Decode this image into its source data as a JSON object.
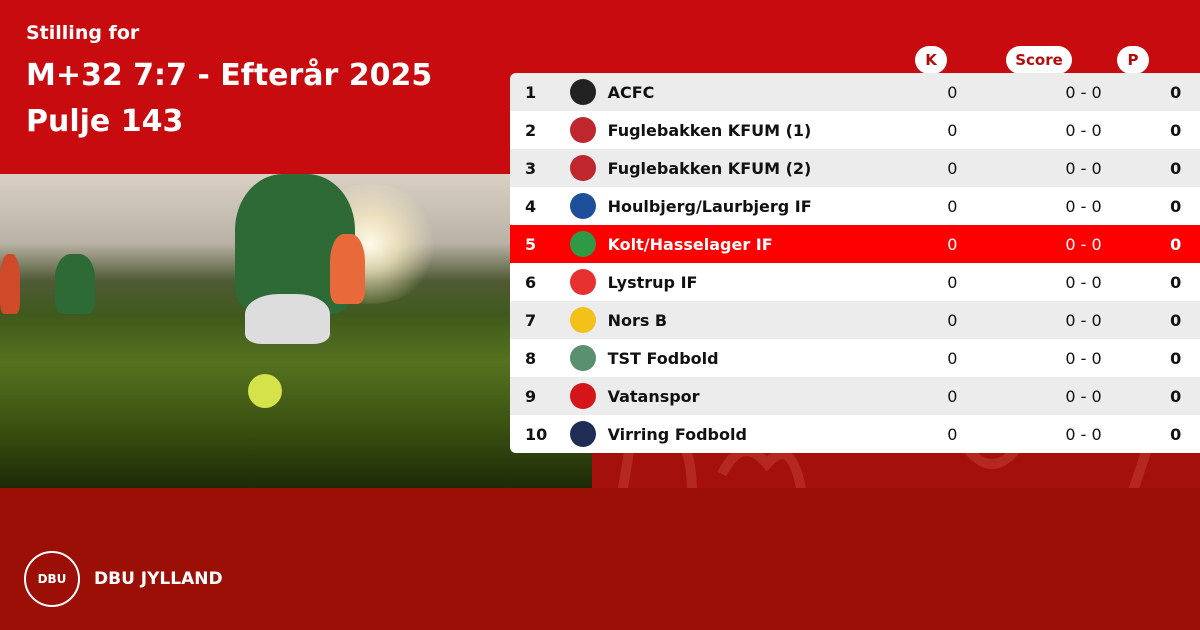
{
  "header": {
    "subtitle": "Stilling for",
    "title": "M+32 7:7 - Efterår 2025",
    "pool": "Pulje 143"
  },
  "columns": {
    "k": "K",
    "score": "Score",
    "p": "P"
  },
  "colors": {
    "header_red": "#c70b0e",
    "footer_red": "#9c0f06",
    "highlight": "#fe0000"
  },
  "rows": [
    {
      "pos": "1",
      "team": "ACFC",
      "k": "0",
      "score": "0 - 0",
      "p": "0",
      "logo": "acfc-crest-icon",
      "logo_color": "#222222"
    },
    {
      "pos": "2",
      "team": "Fuglebakken KFUM (1)",
      "k": "0",
      "score": "0 - 0",
      "p": "0",
      "logo": "fuglebakken-shield-icon",
      "logo_color": "#c0262d"
    },
    {
      "pos": "3",
      "team": "Fuglebakken KFUM (2)",
      "k": "0",
      "score": "0 - 0",
      "p": "0",
      "logo": "fuglebakken-shield-icon",
      "logo_color": "#c0262d"
    },
    {
      "pos": "4",
      "team": "Houlbjerg/Laurbjerg IF",
      "k": "0",
      "score": "0 - 0",
      "p": "0",
      "logo": "houlbjerg-crest-icon",
      "logo_color": "#1d4f9a"
    },
    {
      "pos": "5",
      "team": "Kolt/Hasselager IF",
      "k": "0",
      "score": "0 - 0",
      "p": "0",
      "logo": "khif-crest-icon",
      "logo_color": "#2e9a45",
      "highlight": true
    },
    {
      "pos": "6",
      "team": "Lystrup IF",
      "k": "0",
      "score": "0 - 0",
      "p": "0",
      "logo": "lystrup-crest-icon",
      "logo_color": "#e8312f"
    },
    {
      "pos": "7",
      "team": "Nors B",
      "k": "0",
      "score": "0 - 0",
      "p": "0",
      "logo": "nors-crest-icon",
      "logo_color": "#f2c21b"
    },
    {
      "pos": "8",
      "team": "TST Fodbold",
      "k": "0",
      "score": "0 - 0",
      "p": "0",
      "logo": "tst-crest-icon",
      "logo_color": "#5a8f70"
    },
    {
      "pos": "9",
      "team": "Vatanspor",
      "k": "0",
      "score": "0 - 0",
      "p": "0",
      "logo": "vatanspor-crest-icon",
      "logo_color": "#d4161b"
    },
    {
      "pos": "10",
      "team": "Virring Fodbold",
      "k": "0",
      "score": "0 - 0",
      "p": "0",
      "logo": "virring-crest-icon",
      "logo_color": "#1f2d55"
    }
  ],
  "footer": {
    "brand": "DBU JYLLAND",
    "seal_text": "DBU"
  }
}
